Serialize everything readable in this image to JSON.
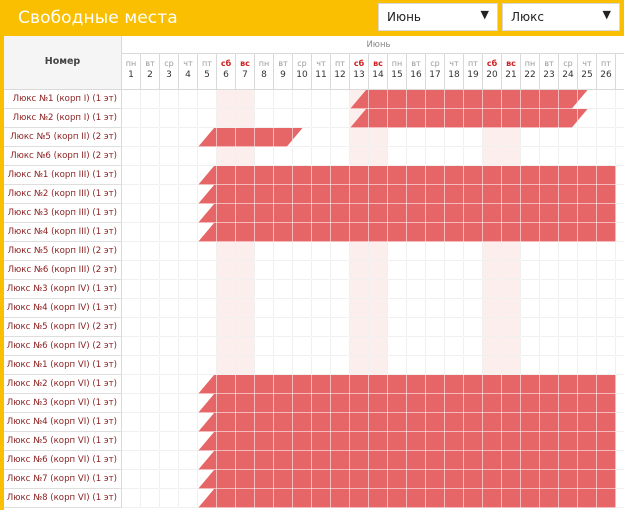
{
  "header": {
    "title": "Свободные места",
    "month_select": "Июнь",
    "type_select": "Люкс"
  },
  "table": {
    "name_column_header": "Номер",
    "month_label": "Июнь",
    "days": [
      {
        "n": "1",
        "w": "пн"
      },
      {
        "n": "2",
        "w": "вт"
      },
      {
        "n": "3",
        "w": "ср"
      },
      {
        "n": "4",
        "w": "чт"
      },
      {
        "n": "5",
        "w": "пт"
      },
      {
        "n": "6",
        "w": "сб",
        "we": true
      },
      {
        "n": "7",
        "w": "вс",
        "we": true
      },
      {
        "n": "8",
        "w": "пн"
      },
      {
        "n": "9",
        "w": "вт"
      },
      {
        "n": "10",
        "w": "ср"
      },
      {
        "n": "11",
        "w": "чт"
      },
      {
        "n": "12",
        "w": "пт"
      },
      {
        "n": "13",
        "w": "сб",
        "we": true
      },
      {
        "n": "14",
        "w": "вс",
        "we": true
      },
      {
        "n": "15",
        "w": "пн"
      },
      {
        "n": "16",
        "w": "вт"
      },
      {
        "n": "17",
        "w": "ср"
      },
      {
        "n": "18",
        "w": "чт"
      },
      {
        "n": "19",
        "w": "пт"
      },
      {
        "n": "20",
        "w": "сб",
        "we": true
      },
      {
        "n": "21",
        "w": "вс",
        "we": true
      },
      {
        "n": "22",
        "w": "пн"
      },
      {
        "n": "23",
        "w": "вт"
      },
      {
        "n": "24",
        "w": "ср"
      },
      {
        "n": "25",
        "w": "чт"
      },
      {
        "n": "26",
        "w": "пт"
      }
    ],
    "rooms": [
      {
        "name": "Люкс №1 (корп I) (1 эт)",
        "bookings": [
          [
            13,
            25.5
          ]
        ]
      },
      {
        "name": "Люкс №2 (корп I) (1 эт)",
        "bookings": [
          [
            13,
            25.5
          ]
        ]
      },
      {
        "name": "Люкс №5 (корп II) (2 эт)",
        "bookings": [
          [
            5,
            10.5
          ]
        ]
      },
      {
        "name": "Люкс №6 (корп II) (2 эт)",
        "bookings": []
      },
      {
        "name": "Люкс №1 (корп III) (1 эт)",
        "bookings": [
          [
            5,
            27
          ]
        ]
      },
      {
        "name": "Люкс №2 (корп III) (1 эт)",
        "bookings": [
          [
            5,
            27
          ]
        ]
      },
      {
        "name": "Люкс №3 (корп III) (1 эт)",
        "bookings": [
          [
            5,
            27
          ]
        ]
      },
      {
        "name": "Люкс №4 (корп III) (1 эт)",
        "bookings": [
          [
            5,
            27
          ]
        ]
      },
      {
        "name": "Люкс №5 (корп III) (2 эт)",
        "bookings": []
      },
      {
        "name": "Люкс №6 (корп III) (2 эт)",
        "bookings": []
      },
      {
        "name": "Люкс №3 (корп IV) (1 эт)",
        "bookings": []
      },
      {
        "name": "Люкс №4 (корп IV) (1 эт)",
        "bookings": []
      },
      {
        "name": "Люкс №5 (корп IV) (2 эт)",
        "bookings": []
      },
      {
        "name": "Люкс №6 (корп IV) (2 эт)",
        "bookings": []
      },
      {
        "name": "Люкс №1 (корп VI) (1 эт)",
        "bookings": []
      },
      {
        "name": "Люкс №2 (корп VI) (1 эт)",
        "bookings": [
          [
            5,
            27
          ]
        ]
      },
      {
        "name": "Люкс №3 (корп VI) (1 эт)",
        "bookings": [
          [
            5,
            27
          ]
        ]
      },
      {
        "name": "Люкс №4 (корп VI) (1 эт)",
        "bookings": [
          [
            5,
            27
          ]
        ]
      },
      {
        "name": "Люкс №5 (корп VI) (1 эт)",
        "bookings": [
          [
            5,
            27
          ]
        ]
      },
      {
        "name": "Люкс №6 (корп VI) (1 эт)",
        "bookings": [
          [
            5,
            27
          ]
        ]
      },
      {
        "name": "Люкс №7 (корп VI) (1 эт)",
        "bookings": [
          [
            5,
            27
          ]
        ]
      },
      {
        "name": "Люкс №8 (корп VI) (1 эт)",
        "bookings": [
          [
            5,
            27
          ]
        ]
      }
    ]
  },
  "colors": {
    "brand": "#f9bf00",
    "booked": "#e66566",
    "weekend_shade": "#fdeeee",
    "weekend_text": "#d02020",
    "room_text": "#8b2222"
  },
  "icons": {
    "dropdown": "chevron-down-icon"
  }
}
